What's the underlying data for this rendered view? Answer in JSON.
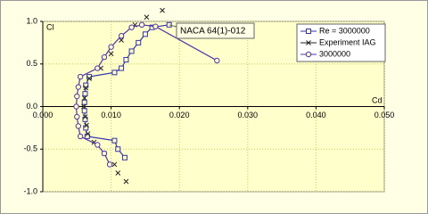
{
  "chart_data": {
    "type": "scatter",
    "x_label": "Cd",
    "y_label": "Cl",
    "annotation": "NACA 64(1)-012",
    "xlim": [
      0,
      0.05
    ],
    "ylim": [
      -1,
      1
    ],
    "xticks": [
      {
        "value": 0,
        "label": "0.000"
      },
      {
        "value": 0.01,
        "label": "0.010"
      },
      {
        "value": 0.02,
        "label": "0.020"
      },
      {
        "value": 0.03,
        "label": "0.030"
      },
      {
        "value": 0.04,
        "label": "0.040"
      },
      {
        "value": 0.05,
        "label": "0.050"
      }
    ],
    "yticks": [
      {
        "value": 1,
        "label": "1.0"
      },
      {
        "value": 0.5,
        "label": "0.5"
      },
      {
        "value": 0,
        "label": "0.0"
      },
      {
        "value": -0.5,
        "label": "-0.5"
      },
      {
        "value": -1,
        "label": "-1.0"
      }
    ],
    "grid": true,
    "legend": "upper right",
    "series": [
      {
        "name": "Re = 3000000",
        "color": "#3333aa",
        "marker": "square",
        "line": true,
        "x": [
          0.0185,
          0.016,
          0.015,
          0.014,
          0.013,
          0.0122,
          0.0115,
          0.0105,
          0.0068,
          0.0063,
          0.0062,
          0.0061,
          0.0061,
          0.0062,
          0.0063,
          0.0065,
          0.0105,
          0.011,
          0.012
        ],
        "y": [
          0.96,
          0.93,
          0.85,
          0.75,
          0.65,
          0.55,
          0.45,
          0.4,
          0.35,
          0.25,
          0.15,
          0.05,
          -0.05,
          -0.15,
          -0.25,
          -0.35,
          -0.4,
          -0.5,
          -0.6
        ]
      },
      {
        "name": "Experiment IAG",
        "color": "#222222",
        "marker": "x",
        "line": false,
        "x": [
          0.0175,
          0.0152,
          0.0135,
          0.0115,
          0.01,
          0.0085,
          0.0068,
          0.0063,
          0.0061,
          0.006,
          0.0062,
          0.0064,
          0.0066,
          0.0075,
          0.009,
          0.0105,
          0.011,
          0.0122
        ],
        "y": [
          1.13,
          1.05,
          0.96,
          0.78,
          0.62,
          0.45,
          0.33,
          0.22,
          0.1,
          0,
          -0.12,
          -0.22,
          -0.32,
          -0.42,
          -0.55,
          -0.68,
          -0.78,
          -0.88
        ]
      },
      {
        "name": "3000000",
        "color": "#5533aa",
        "marker": "circle",
        "line": true,
        "x": [
          0.0255,
          0.0165,
          0.0145,
          0.013,
          0.0115,
          0.01,
          0.009,
          0.008,
          0.0055,
          0.0052,
          0.005,
          0.0049,
          0.005,
          0.0052,
          0.0055,
          0.008,
          0.009,
          0.0098
        ],
        "y": [
          0.54,
          0.94,
          0.96,
          0.93,
          0.83,
          0.7,
          0.58,
          0.45,
          0.35,
          0.23,
          0.12,
          0,
          -0.12,
          -0.23,
          -0.35,
          -0.45,
          -0.55,
          -0.68
        ]
      }
    ]
  }
}
